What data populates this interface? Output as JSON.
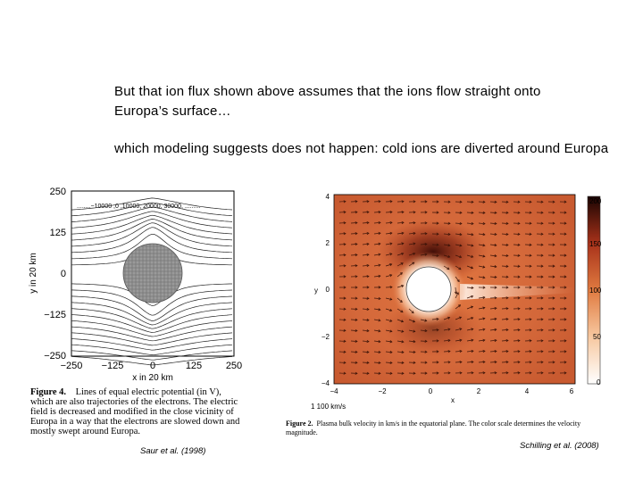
{
  "slide": {
    "text1": "But that ion flux shown above assumes that the ions flow straight onto Europa’s surface…",
    "text2": "which modeling suggests does not happen: cold ions are diverted around Europa"
  },
  "left_figure": {
    "legend": "........−10000 ,0 ,10000, 20000, 30000, .........",
    "ylabel": "y in 20 km",
    "xlabel": "x in 20 km",
    "yticks": [
      "250",
      "125",
      "0",
      "−125",
      "−250"
    ],
    "xticks": [
      "−250",
      "−125",
      "0",
      "125",
      "250"
    ],
    "caption_label": "Figure 4.",
    "caption_lines": [
      "Lines of equal electric potential (in V),",
      "which are also trajectories of the electrons. The electric",
      "field is decreased and modified in the close vicinity of",
      "Europa in a way that the electrons are slowed down and",
      "mostly swept around Europa."
    ],
    "citation": "Saur et al. (1998)"
  },
  "right_figure": {
    "ylabel": "y",
    "xlabel": "x",
    "yticks": [
      "4",
      "2",
      "0",
      "−2",
      "−4"
    ],
    "xticks": [
      "−4",
      "−2",
      "0",
      "2",
      "4",
      "6"
    ],
    "colorbar_ticks": [
      "200",
      "150",
      "100",
      "50",
      "0"
    ],
    "scale_label": "1  100 km/s",
    "caption_label": "Figure 2.",
    "caption_lines": [
      "Plasma bulk velocity in km/s in the equatorial plane. The color scale determines the velocity",
      "magnitude."
    ],
    "citation": "Schilling et al. (2008)"
  }
}
